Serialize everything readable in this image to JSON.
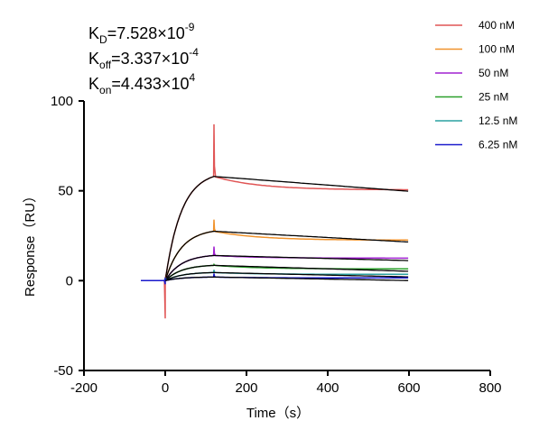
{
  "chart_data": {
    "type": "line",
    "xlabel": "Time（s）",
    "ylabel": "Response（RU）",
    "xlim": [
      -200,
      800
    ],
    "ylim": [
      -50,
      100
    ],
    "x_ticks": [
      -200,
      0,
      200,
      400,
      600,
      800
    ],
    "y_ticks": [
      -50,
      0,
      50,
      100
    ],
    "annotations": [
      {
        "base": "K",
        "sub": "D",
        "text": "=7.528×10",
        "sup": "-9"
      },
      {
        "base": "K",
        "sub": "off",
        "text": "=3.337×10",
        "sup": "-4"
      },
      {
        "base": "K",
        "sub": "on",
        "text": "=4.433×10",
        "sup": "4"
      }
    ],
    "legend_position": "top-right",
    "series": [
      {
        "name": "400 nM",
        "color": "#e05555",
        "plateau": 58,
        "end": 50.5,
        "spike": 87,
        "dip": -21
      },
      {
        "name": "100 nM",
        "color": "#f0922b",
        "plateau": 27.5,
        "end": 22.5,
        "spike": 34,
        "dip": 0
      },
      {
        "name": "50 nM",
        "color": "#a020d0",
        "plateau": 14,
        "end": 12.5,
        "spike": 19,
        "dip": 0
      },
      {
        "name": "25 nM",
        "color": "#2aa02a",
        "plateau": 8.5,
        "end": 6.5,
        "spike": 9,
        "dip": 0
      },
      {
        "name": "12.5 nM",
        "color": "#2aa0a0",
        "plateau": 4.5,
        "end": 3.5,
        "spike": 6,
        "dip": 0
      },
      {
        "name": "6.25 nM",
        "color": "#1a1acc",
        "plateau": 2,
        "end": 1.5,
        "spike": 4,
        "dip": -2
      }
    ],
    "fit_color": "#000000"
  }
}
